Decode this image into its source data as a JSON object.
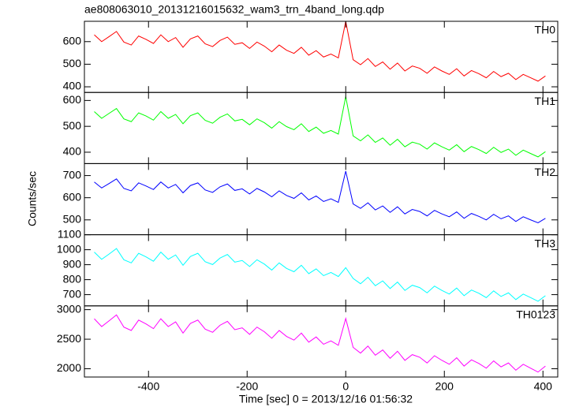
{
  "chart_data": {
    "type": "line",
    "title": "ae808063010_20131216015632_wam3_trn_4band_long.qdp",
    "xlabel": "Time [sec] 0 = 2013/12/16 01:56:32",
    "ylabel": "Counts/sec",
    "xlim": [
      -530,
      430
    ],
    "xticks": [
      -400,
      -200,
      0,
      200,
      400
    ],
    "x": [
      -510,
      -495,
      -480,
      -465,
      -450,
      -435,
      -420,
      -405,
      -390,
      -375,
      -360,
      -345,
      -330,
      -315,
      -300,
      -285,
      -270,
      -255,
      -240,
      -225,
      -210,
      -195,
      -180,
      -165,
      -150,
      -135,
      -120,
      -105,
      -90,
      -75,
      -60,
      -45,
      -30,
      -15,
      0,
      15,
      30,
      45,
      60,
      75,
      90,
      105,
      120,
      135,
      150,
      165,
      180,
      195,
      210,
      225,
      240,
      255,
      270,
      285,
      300,
      315,
      330,
      345,
      360,
      375,
      390,
      405
    ],
    "series": [
      {
        "name": "TH0",
        "color": "#ff0000",
        "ylim": [
          375,
          690
        ],
        "yticks": [
          400,
          500,
          600
        ],
        "values": [
          630,
          600,
          622,
          645,
          598,
          585,
          625,
          610,
          592,
          630,
          600,
          618,
          575,
          612,
          625,
          590,
          578,
          605,
          620,
          588,
          595,
          570,
          598,
          580,
          555,
          585,
          562,
          548,
          575,
          540,
          560,
          532,
          545,
          528,
          690,
          520,
          498,
          525,
          490,
          510,
          478,
          505,
          470,
          492,
          482,
          460,
          488,
          470,
          455,
          480,
          448,
          472,
          458,
          440,
          468,
          445,
          460,
          432,
          455,
          440,
          425,
          448
        ]
      },
      {
        "name": "TH1",
        "color": "#00ff00",
        "ylim": [
          356,
          631
        ],
        "yticks": [
          400,
          500,
          600
        ],
        "values": [
          557,
          531,
          550,
          569,
          529,
          518,
          552,
          540,
          524,
          557,
          531,
          546,
          510,
          541,
          552,
          523,
          512,
          535,
          548,
          521,
          527,
          506,
          529,
          514,
          493,
          518,
          499,
          487,
          510,
          480,
          497,
          473,
          484,
          470,
          615,
          463,
          444,
          467,
          438,
          455,
          427,
          450,
          421,
          439,
          431,
          412,
          436,
          421,
          408,
          429,
          402,
          422,
          410,
          395,
          419,
          399,
          412,
          388,
          408,
          395,
          382,
          402
        ]
      },
      {
        "name": "TH2",
        "color": "#0000ff",
        "ylim": [
          433,
          754
        ],
        "yticks": [
          500,
          600,
          700
        ],
        "values": [
          671,
          644,
          664,
          685,
          642,
          631,
          667,
          653,
          637,
          671,
          644,
          660,
          622,
          655,
          667,
          635,
          624,
          649,
          662,
          633,
          640,
          617,
          642,
          626,
          604,
          631,
          610,
          597,
          622,
          590,
          608,
          583,
          595,
          579,
          720,
          572,
          552,
          577,
          545,
          563,
          534,
          559,
          527,
          547,
          538,
          518,
          543,
          527,
          514,
          536,
          507,
          529,
          516,
          500,
          525,
          505,
          518,
          493,
          514,
          500,
          487,
          507
        ]
      },
      {
        "name": "TH3",
        "color": "#00ffff",
        "ylim": [
          625,
          1100
        ],
        "yticks": [
          700,
          800,
          900,
          1000,
          1100
        ],
        "values": [
          984,
          936,
          971,
          1008,
          933,
          912,
          976,
          952,
          923,
          984,
          936,
          965,
          896,
          955,
          976,
          920,
          901,
          944,
          968,
          917,
          928,
          888,
          933,
          904,
          864,
          912,
          875,
          853,
          896,
          840,
          872,
          827,
          848,
          821,
          880,
          808,
          773,
          816,
          760,
          792,
          741,
          784,
          728,
          763,
          747,
          712,
          757,
          728,
          704,
          744,
          693,
          731,
          709,
          680,
          725,
          688,
          712,
          667,
          704,
          680,
          656,
          693
        ]
      },
      {
        "name": "TH0123",
        "color": "#ff00ff",
        "ylim": [
          1860,
          3064
        ],
        "yticks": [
          2000,
          2500,
          3000
        ],
        "values": [
          2846,
          2714,
          2811,
          2912,
          2705,
          2648,
          2824,
          2758,
          2679,
          2846,
          2714,
          2793,
          2604,
          2767,
          2824,
          2670,
          2617,
          2736,
          2802,
          2661,
          2692,
          2582,
          2705,
          2626,
          2516,
          2648,
          2547,
          2485,
          2604,
          2450,
          2538,
          2415,
          2472,
          2397,
          2850,
          2362,
          2265,
          2384,
          2230,
          2318,
          2177,
          2296,
          2142,
          2239,
          2195,
          2098,
          2221,
          2142,
          2076,
          2186,
          2045,
          2151,
          2089,
          2010,
          2133,
          2032,
          2098,
          1975,
          2076,
          2010,
          1944,
          2045
        ]
      }
    ]
  }
}
